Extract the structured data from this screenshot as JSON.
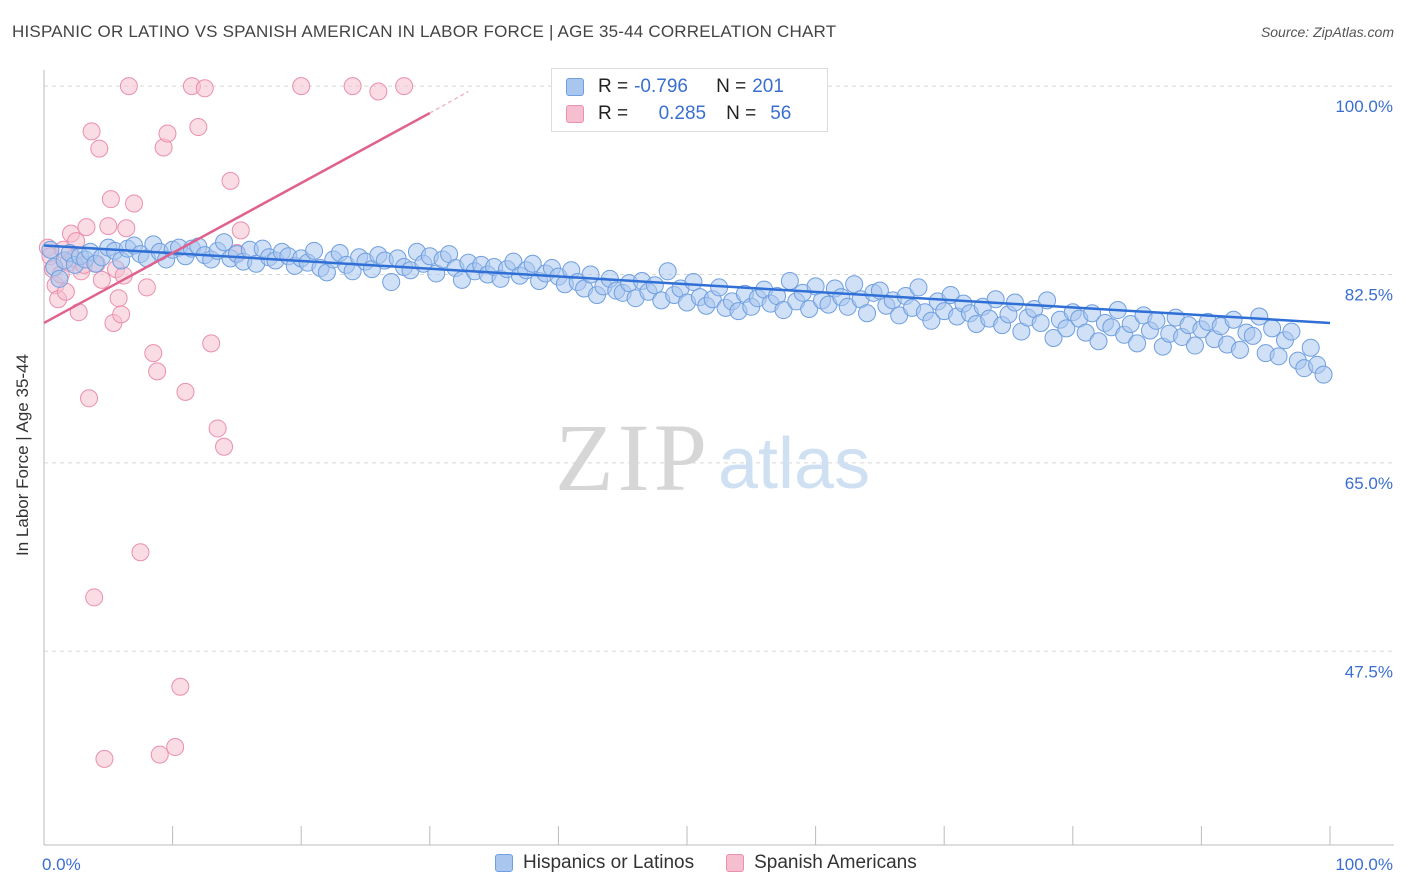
{
  "title": "HISPANIC OR LATINO VS SPANISH AMERICAN IN LABOR FORCE | AGE 35-44 CORRELATION CHART",
  "source": "Source: ZipAtlas.com",
  "watermark": {
    "zip": "ZIP",
    "atlas": "atlas"
  },
  "colors": {
    "blue_fill": "#a9c6ef",
    "blue_stroke": "#6f9fe0",
    "blue_line": "#2f6fd6",
    "pink_fill": "#f6bfd0",
    "pink_stroke": "#ea8fae",
    "pink_line": "#e0608e",
    "axis_label": "#3a6fd0",
    "grid": "#d8d8d8"
  },
  "legend_top": [
    {
      "r_label": "R =",
      "r_value": "-0.796",
      "n_label": "N =",
      "n_value": "201"
    },
    {
      "r_label": "R =",
      "r_value": "0.285",
      "n_label": "N =",
      "n_value": "56"
    }
  ],
  "legend_bottom": [
    "Hispanics or Latinos",
    "Spanish Americans"
  ],
  "chart_data": {
    "type": "scatter",
    "title": "HISPANIC OR LATINO VS SPANISH AMERICAN IN LABOR FORCE | AGE 35-44 CORRELATION CHART",
    "xlabel": "",
    "ylabel": "In Labor Force | Age 35-44",
    "xlim": [
      0,
      100
    ],
    "ylim": [
      29.5,
      101.5
    ],
    "x_tick_labels": [
      "0.0%",
      "100.0%"
    ],
    "y_ticks": [
      100.0,
      82.5,
      65.0,
      47.5
    ],
    "y_tick_labels": [
      "100.0%",
      "82.5%",
      "65.0%",
      "47.5%"
    ],
    "grid": true,
    "series": [
      {
        "name": "Hispanics or Latinos",
        "r": -0.796,
        "n": 201,
        "trend": {
          "x": [
            0,
            100
          ],
          "y": [
            85.2,
            78.0
          ]
        },
        "points": [
          [
            0.5,
            84.8
          ],
          [
            0.8,
            83.2
          ],
          [
            1.2,
            82.1
          ],
          [
            1.6,
            83.8
          ],
          [
            2.0,
            84.5
          ],
          [
            2.4,
            83.4
          ],
          [
            2.8,
            84.2
          ],
          [
            3.2,
            83.9
          ],
          [
            3.6,
            84.6
          ],
          [
            4.0,
            83.5
          ],
          [
            4.5,
            84.1
          ],
          [
            5.0,
            85.0
          ],
          [
            5.5,
            84.7
          ],
          [
            6.0,
            83.8
          ],
          [
            6.5,
            84.9
          ],
          [
            7.0,
            85.2
          ],
          [
            7.5,
            84.4
          ],
          [
            8.0,
            84.0
          ],
          [
            8.5,
            85.3
          ],
          [
            9.0,
            84.6
          ],
          [
            9.5,
            83.9
          ],
          [
            10.0,
            84.8
          ],
          [
            10.5,
            85.0
          ],
          [
            11.0,
            84.2
          ],
          [
            11.5,
            84.9
          ],
          [
            12.0,
            85.1
          ],
          [
            12.5,
            84.3
          ],
          [
            13.0,
            83.9
          ],
          [
            13.5,
            84.7
          ],
          [
            14.0,
            85.5
          ],
          [
            14.5,
            84.0
          ],
          [
            15.0,
            84.4
          ],
          [
            15.5,
            83.7
          ],
          [
            16.0,
            84.8
          ],
          [
            16.5,
            83.5
          ],
          [
            17.0,
            84.9
          ],
          [
            17.5,
            84.1
          ],
          [
            18.0,
            83.8
          ],
          [
            18.5,
            84.6
          ],
          [
            19.0,
            84.2
          ],
          [
            19.5,
            83.3
          ],
          [
            20.0,
            84.0
          ],
          [
            20.5,
            83.6
          ],
          [
            21.0,
            84.7
          ],
          [
            21.5,
            83.1
          ],
          [
            22.0,
            82.7
          ],
          [
            22.5,
            83.9
          ],
          [
            23.0,
            84.5
          ],
          [
            23.5,
            83.4
          ],
          [
            24.0,
            82.8
          ],
          [
            24.5,
            84.1
          ],
          [
            25.0,
            83.7
          ],
          [
            25.5,
            83.0
          ],
          [
            26.0,
            84.3
          ],
          [
            26.5,
            83.8
          ],
          [
            27.0,
            81.8
          ],
          [
            27.5,
            84.0
          ],
          [
            28.0,
            83.2
          ],
          [
            28.5,
            82.9
          ],
          [
            29.0,
            84.6
          ],
          [
            29.5,
            83.5
          ],
          [
            30.0,
            84.2
          ],
          [
            30.5,
            82.6
          ],
          [
            31.0,
            83.9
          ],
          [
            31.5,
            84.4
          ],
          [
            32.0,
            83.1
          ],
          [
            32.5,
            82.0
          ],
          [
            33.0,
            83.6
          ],
          [
            33.5,
            82.8
          ],
          [
            34.0,
            83.4
          ],
          [
            34.5,
            82.5
          ],
          [
            35.0,
            83.2
          ],
          [
            35.5,
            82.1
          ],
          [
            36.0,
            83.0
          ],
          [
            36.5,
            83.7
          ],
          [
            37.0,
            82.4
          ],
          [
            37.5,
            82.9
          ],
          [
            38.0,
            83.5
          ],
          [
            38.5,
            81.9
          ],
          [
            39.0,
            82.6
          ],
          [
            39.5,
            83.1
          ],
          [
            40.0,
            82.3
          ],
          [
            40.5,
            81.6
          ],
          [
            41.0,
            82.9
          ],
          [
            41.5,
            81.8
          ],
          [
            42.0,
            81.2
          ],
          [
            42.5,
            82.5
          ],
          [
            43.0,
            80.6
          ],
          [
            43.5,
            81.4
          ],
          [
            44.0,
            82.1
          ],
          [
            44.5,
            81.0
          ],
          [
            45.0,
            80.8
          ],
          [
            45.5,
            81.7
          ],
          [
            46.0,
            80.3
          ],
          [
            46.5,
            81.9
          ],
          [
            47.0,
            80.9
          ],
          [
            47.5,
            81.5
          ],
          [
            48.0,
            80.1
          ],
          [
            48.5,
            82.8
          ],
          [
            49.0,
            80.6
          ],
          [
            49.5,
            81.2
          ],
          [
            50.0,
            79.9
          ],
          [
            50.5,
            81.8
          ],
          [
            51.0,
            80.4
          ],
          [
            51.5,
            79.6
          ],
          [
            52.0,
            80.2
          ],
          [
            52.5,
            81.3
          ],
          [
            53.0,
            79.4
          ],
          [
            53.5,
            80.0
          ],
          [
            54.0,
            79.1
          ],
          [
            54.5,
            80.7
          ],
          [
            55.0,
            79.5
          ],
          [
            55.5,
            80.3
          ],
          [
            56.0,
            81.1
          ],
          [
            56.5,
            79.8
          ],
          [
            57.0,
            80.5
          ],
          [
            57.5,
            79.2
          ],
          [
            58.0,
            81.9
          ],
          [
            58.5,
            80.0
          ],
          [
            59.0,
            80.8
          ],
          [
            59.5,
            79.3
          ],
          [
            60.0,
            81.4
          ],
          [
            60.5,
            80.1
          ],
          [
            61.0,
            79.7
          ],
          [
            61.5,
            81.2
          ],
          [
            62.0,
            80.4
          ],
          [
            62.5,
            79.5
          ],
          [
            63.0,
            81.6
          ],
          [
            63.5,
            80.2
          ],
          [
            64.0,
            78.9
          ],
          [
            64.5,
            80.8
          ],
          [
            65.0,
            81.0
          ],
          [
            65.5,
            79.6
          ],
          [
            66.0,
            80.1
          ],
          [
            66.5,
            78.7
          ],
          [
            67.0,
            80.5
          ],
          [
            67.5,
            79.4
          ],
          [
            68.0,
            81.3
          ],
          [
            68.5,
            79.0
          ],
          [
            69.0,
            78.2
          ],
          [
            69.5,
            80.0
          ],
          [
            70.0,
            79.1
          ],
          [
            70.5,
            80.6
          ],
          [
            71.0,
            78.6
          ],
          [
            71.5,
            79.8
          ],
          [
            72.0,
            78.9
          ],
          [
            72.5,
            77.9
          ],
          [
            73.0,
            79.5
          ],
          [
            73.5,
            78.4
          ],
          [
            74.0,
            80.2
          ],
          [
            74.5,
            77.8
          ],
          [
            75.0,
            78.8
          ],
          [
            75.5,
            79.9
          ],
          [
            76.0,
            77.2
          ],
          [
            76.5,
            78.5
          ],
          [
            77.0,
            79.3
          ],
          [
            77.5,
            78.0
          ],
          [
            78.0,
            80.1
          ],
          [
            78.5,
            76.6
          ],
          [
            79.0,
            78.3
          ],
          [
            79.5,
            77.5
          ],
          [
            80.0,
            79.0
          ],
          [
            80.5,
            78.4
          ],
          [
            81.0,
            77.1
          ],
          [
            81.5,
            78.9
          ],
          [
            82.0,
            76.3
          ],
          [
            82.5,
            78.0
          ],
          [
            83.0,
            77.6
          ],
          [
            83.5,
            79.2
          ],
          [
            84.0,
            76.9
          ],
          [
            84.5,
            77.9
          ],
          [
            85.0,
            76.1
          ],
          [
            85.5,
            78.7
          ],
          [
            86.0,
            77.3
          ],
          [
            86.5,
            78.2
          ],
          [
            87.0,
            75.8
          ],
          [
            87.5,
            77.0
          ],
          [
            88.0,
            78.5
          ],
          [
            88.5,
            76.7
          ],
          [
            89.0,
            77.8
          ],
          [
            89.5,
            75.9
          ],
          [
            90.0,
            77.4
          ],
          [
            90.5,
            78.1
          ],
          [
            91.0,
            76.5
          ],
          [
            91.5,
            77.7
          ],
          [
            92.0,
            76.0
          ],
          [
            92.5,
            78.3
          ],
          [
            93.0,
            75.5
          ],
          [
            93.5,
            77.1
          ],
          [
            94.0,
            76.8
          ],
          [
            94.5,
            78.6
          ],
          [
            95.0,
            75.2
          ],
          [
            95.5,
            77.5
          ],
          [
            96.0,
            74.9
          ],
          [
            96.5,
            76.4
          ],
          [
            97.0,
            77.2
          ],
          [
            97.5,
            74.5
          ],
          [
            98.0,
            73.8
          ],
          [
            98.5,
            75.7
          ],
          [
            99.0,
            74.1
          ],
          [
            99.5,
            73.2
          ]
        ]
      },
      {
        "name": "Spanish Americans",
        "r": 0.285,
        "n": 56,
        "trend": {
          "x": [
            0,
            30
          ],
          "y": [
            78.0,
            97.5
          ]
        },
        "trend_dashed": {
          "x": [
            30,
            33
          ],
          "y": [
            97.5,
            99.5
          ]
        },
        "points": [
          [
            0.3,
            85.0
          ],
          [
            0.5,
            84.2
          ],
          [
            0.7,
            83.0
          ],
          [
            0.9,
            81.5
          ],
          [
            1.1,
            80.2
          ],
          [
            1.3,
            82.5
          ],
          [
            1.5,
            84.8
          ],
          [
            1.7,
            80.9
          ],
          [
            1.9,
            83.6
          ],
          [
            2.1,
            86.3
          ],
          [
            2.3,
            84.0
          ],
          [
            2.5,
            85.6
          ],
          [
            2.7,
            79.0
          ],
          [
            2.9,
            82.8
          ],
          [
            3.1,
            83.4
          ],
          [
            3.3,
            86.9
          ],
          [
            3.5,
            71.0
          ],
          [
            3.7,
            95.8
          ],
          [
            3.9,
            52.5
          ],
          [
            4.1,
            83.5
          ],
          [
            4.3,
            94.2
          ],
          [
            4.5,
            82.0
          ],
          [
            4.7,
            37.5
          ],
          [
            5.0,
            87.0
          ],
          [
            5.2,
            89.5
          ],
          [
            5.4,
            78.0
          ],
          [
            5.6,
            83.0
          ],
          [
            5.8,
            80.3
          ],
          [
            6.0,
            78.8
          ],
          [
            6.2,
            82.4
          ],
          [
            6.4,
            86.8
          ],
          [
            6.6,
            100.0
          ],
          [
            7.0,
            89.1
          ],
          [
            7.5,
            56.7
          ],
          [
            8.0,
            81.3
          ],
          [
            8.5,
            75.2
          ],
          [
            8.8,
            73.5
          ],
          [
            9.0,
            37.9
          ],
          [
            9.3,
            94.3
          ],
          [
            9.6,
            95.6
          ],
          [
            10.2,
            38.6
          ],
          [
            10.6,
            44.2
          ],
          [
            11.0,
            71.6
          ],
          [
            11.5,
            100.0
          ],
          [
            12.0,
            96.2
          ],
          [
            12.5,
            99.8
          ],
          [
            13.0,
            76.1
          ],
          [
            13.5,
            68.2
          ],
          [
            14.0,
            66.5
          ],
          [
            14.5,
            91.2
          ],
          [
            15.0,
            84.5
          ],
          [
            15.3,
            86.6
          ],
          [
            20.0,
            100.0
          ],
          [
            24.0,
            100.0
          ],
          [
            26.0,
            99.5
          ],
          [
            28.0,
            100.0
          ]
        ]
      }
    ]
  }
}
